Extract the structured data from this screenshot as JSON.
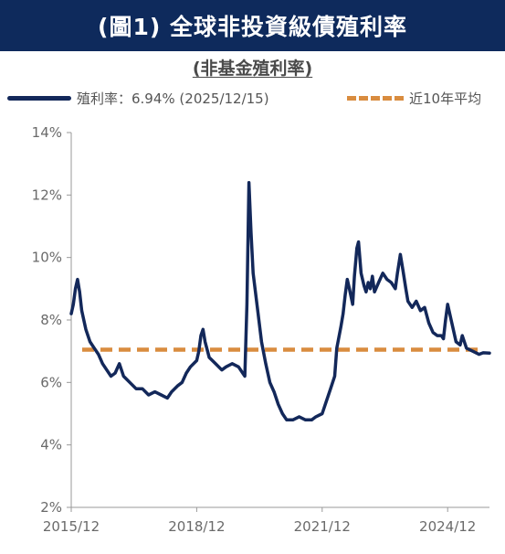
{
  "header": {
    "title": "(圖1) 全球非投資級債殖利率"
  },
  "chart_data": {
    "type": "line",
    "title": "(非基金殖利率)",
    "ylabel": "",
    "xlabel": "",
    "ylim": [
      2,
      14
    ],
    "y_ticks": [
      "2%",
      "4%",
      "6%",
      "8%",
      "10%",
      "12%",
      "14%"
    ],
    "x_ticks": [
      "2015/12",
      "2018/12",
      "2021/12",
      "2024/12"
    ],
    "grid": false,
    "legend_position": "top",
    "series": [
      {
        "name": "殖利率：6.94% (2025/12/15)",
        "color": "#13285a",
        "points": [
          [
            2015.95,
            8.2
          ],
          [
            2016.0,
            8.5
          ],
          [
            2016.05,
            9.0
          ],
          [
            2016.1,
            9.3
          ],
          [
            2016.15,
            8.9
          ],
          [
            2016.2,
            8.3
          ],
          [
            2016.3,
            7.7
          ],
          [
            2016.4,
            7.3
          ],
          [
            2016.5,
            7.1
          ],
          [
            2016.6,
            6.9
          ],
          [
            2016.7,
            6.6
          ],
          [
            2016.8,
            6.4
          ],
          [
            2016.9,
            6.2
          ],
          [
            2017.0,
            6.3
          ],
          [
            2017.1,
            6.6
          ],
          [
            2017.2,
            6.2
          ],
          [
            2017.35,
            6.0
          ],
          [
            2017.5,
            5.8
          ],
          [
            2017.65,
            5.8
          ],
          [
            2017.8,
            5.6
          ],
          [
            2017.95,
            5.7
          ],
          [
            2018.1,
            5.6
          ],
          [
            2018.25,
            5.5
          ],
          [
            2018.35,
            5.7
          ],
          [
            2018.5,
            5.9
          ],
          [
            2018.6,
            6.0
          ],
          [
            2018.7,
            6.3
          ],
          [
            2018.8,
            6.5
          ],
          [
            2018.95,
            6.7
          ],
          [
            2019.0,
            7.0
          ],
          [
            2019.05,
            7.5
          ],
          [
            2019.1,
            7.7
          ],
          [
            2019.15,
            7.3
          ],
          [
            2019.25,
            6.8
          ],
          [
            2019.4,
            6.6
          ],
          [
            2019.55,
            6.4
          ],
          [
            2019.65,
            6.5
          ],
          [
            2019.8,
            6.6
          ],
          [
            2019.95,
            6.5
          ],
          [
            2020.05,
            6.3
          ],
          [
            2020.1,
            6.2
          ],
          [
            2020.15,
            8.5
          ],
          [
            2020.2,
            12.4
          ],
          [
            2020.25,
            10.8
          ],
          [
            2020.3,
            9.5
          ],
          [
            2020.4,
            8.4
          ],
          [
            2020.5,
            7.3
          ],
          [
            2020.6,
            6.6
          ],
          [
            2020.7,
            6.0
          ],
          [
            2020.8,
            5.7
          ],
          [
            2020.9,
            5.3
          ],
          [
            2021.0,
            5.0
          ],
          [
            2021.1,
            4.8
          ],
          [
            2021.25,
            4.8
          ],
          [
            2021.4,
            4.9
          ],
          [
            2021.55,
            4.8
          ],
          [
            2021.7,
            4.8
          ],
          [
            2021.8,
            4.9
          ],
          [
            2021.95,
            5.0
          ],
          [
            2022.05,
            5.4
          ],
          [
            2022.15,
            5.8
          ],
          [
            2022.25,
            6.2
          ],
          [
            2022.3,
            7.1
          ],
          [
            2022.4,
            7.8
          ],
          [
            2022.45,
            8.2
          ],
          [
            2022.5,
            8.8
          ],
          [
            2022.55,
            9.3
          ],
          [
            2022.6,
            9.0
          ],
          [
            2022.68,
            8.5
          ],
          [
            2022.72,
            9.4
          ],
          [
            2022.78,
            10.3
          ],
          [
            2022.82,
            10.5
          ],
          [
            2022.88,
            9.5
          ],
          [
            2022.95,
            9.1
          ],
          [
            2023.0,
            8.9
          ],
          [
            2023.05,
            9.2
          ],
          [
            2023.1,
            9.0
          ],
          [
            2023.15,
            9.4
          ],
          [
            2023.2,
            8.9
          ],
          [
            2023.3,
            9.2
          ],
          [
            2023.4,
            9.5
          ],
          [
            2023.5,
            9.3
          ],
          [
            2023.6,
            9.2
          ],
          [
            2023.7,
            9.0
          ],
          [
            2023.75,
            9.5
          ],
          [
            2023.82,
            10.1
          ],
          [
            2023.88,
            9.6
          ],
          [
            2023.95,
            9.0
          ],
          [
            2024.0,
            8.6
          ],
          [
            2024.1,
            8.4
          ],
          [
            2024.2,
            8.6
          ],
          [
            2024.3,
            8.3
          ],
          [
            2024.4,
            8.4
          ],
          [
            2024.5,
            7.9
          ],
          [
            2024.6,
            7.6
          ],
          [
            2024.7,
            7.5
          ],
          [
            2024.8,
            7.5
          ],
          [
            2024.85,
            7.4
          ],
          [
            2024.9,
            8.0
          ],
          [
            2024.95,
            8.5
          ],
          [
            2025.05,
            7.9
          ],
          [
            2025.15,
            7.3
          ],
          [
            2025.25,
            7.2
          ],
          [
            2025.3,
            7.5
          ],
          [
            2025.4,
            7.1
          ],
          [
            2025.55,
            7.0
          ],
          [
            2025.7,
            6.9
          ],
          [
            2025.8,
            6.95
          ],
          [
            2025.95,
            6.94
          ]
        ]
      },
      {
        "name": "近10年平均",
        "color": "#d98c3f",
        "dashed": true,
        "value": 7.05
      }
    ]
  }
}
